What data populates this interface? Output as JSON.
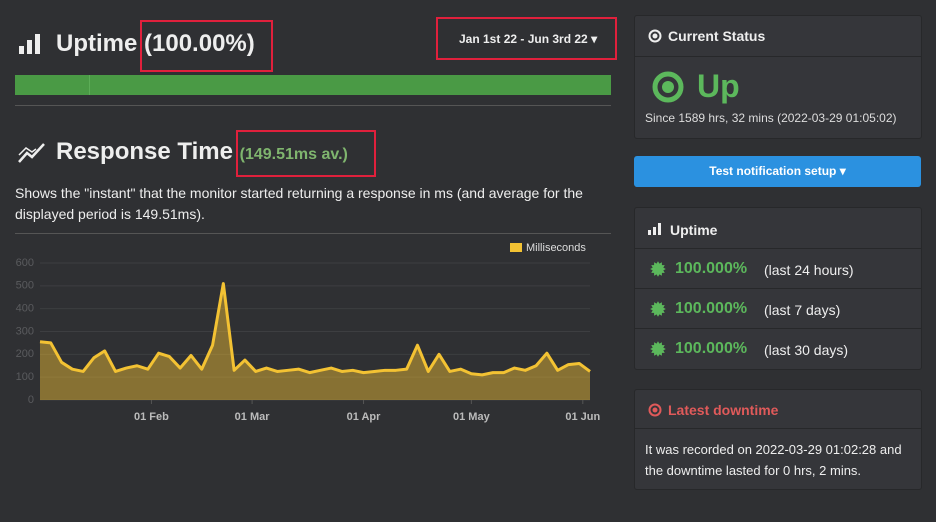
{
  "uptime": {
    "title": "Uptime",
    "value": "(100.00%)",
    "date_range": "Jan 1st 22 - Jun 3rd 22"
  },
  "response": {
    "title": "Response Time",
    "average": "(149.51ms av.)",
    "description": "Shows the \"instant\" that the monitor started returning a response in ms (and average for the displayed period is 149.51ms)."
  },
  "chart_data": {
    "type": "area",
    "x": [
      1,
      4,
      7,
      10,
      13,
      16,
      19,
      22,
      25,
      28,
      31,
      34,
      37,
      40,
      43,
      46,
      49,
      52,
      55,
      58,
      61,
      64,
      67,
      70,
      73,
      76,
      79,
      82,
      85,
      88,
      91,
      94,
      97,
      100,
      103,
      106,
      109,
      112,
      115,
      118,
      121,
      124,
      127,
      130,
      133,
      136,
      139,
      142,
      145,
      148,
      151,
      154
    ],
    "series": [
      {
        "name": "Milliseconds",
        "color": "#f3c233",
        "values": [
          255,
          250,
          165,
          135,
          125,
          185,
          215,
          125,
          140,
          150,
          135,
          205,
          190,
          140,
          195,
          135,
          240,
          510,
          130,
          175,
          125,
          140,
          125,
          130,
          135,
          120,
          130,
          140,
          125,
          130,
          120,
          125,
          130,
          130,
          135,
          240,
          125,
          200,
          125,
          135,
          115,
          110,
          120,
          120,
          140,
          130,
          150,
          205,
          130,
          155,
          160,
          125
        ]
      }
    ],
    "xlim": [
      1,
      154
    ],
    "xticks": [
      {
        "value": 32,
        "label": "01 Feb"
      },
      {
        "value": 60,
        "label": "01 Mar"
      },
      {
        "value": 91,
        "label": "01 Apr"
      },
      {
        "value": 121,
        "label": "01 May"
      },
      {
        "value": 152,
        "label": "01 Jun"
      }
    ],
    "ylim": [
      0,
      600
    ],
    "yticks": [
      0,
      100,
      200,
      300,
      400,
      500,
      600
    ],
    "grid": true
  },
  "status": {
    "title": "Current Status",
    "state": "Up",
    "since": "Since 1589 hrs, 32 mins (2022-03-29 01:05:02)",
    "button": "Test notification setup"
  },
  "uptime_panel": {
    "title": "Uptime",
    "rows": [
      {
        "value": "100.000%",
        "period": "(last 24 hours)"
      },
      {
        "value": "100.000%",
        "period": "(last 7 days)"
      },
      {
        "value": "100.000%",
        "period": "(last 30 days)"
      }
    ]
  },
  "downtime": {
    "title": "Latest downtime",
    "text": "It was recorded on 2022-03-29 01:02:28 and the downtime lasted for 0 hrs, 2 mins."
  }
}
